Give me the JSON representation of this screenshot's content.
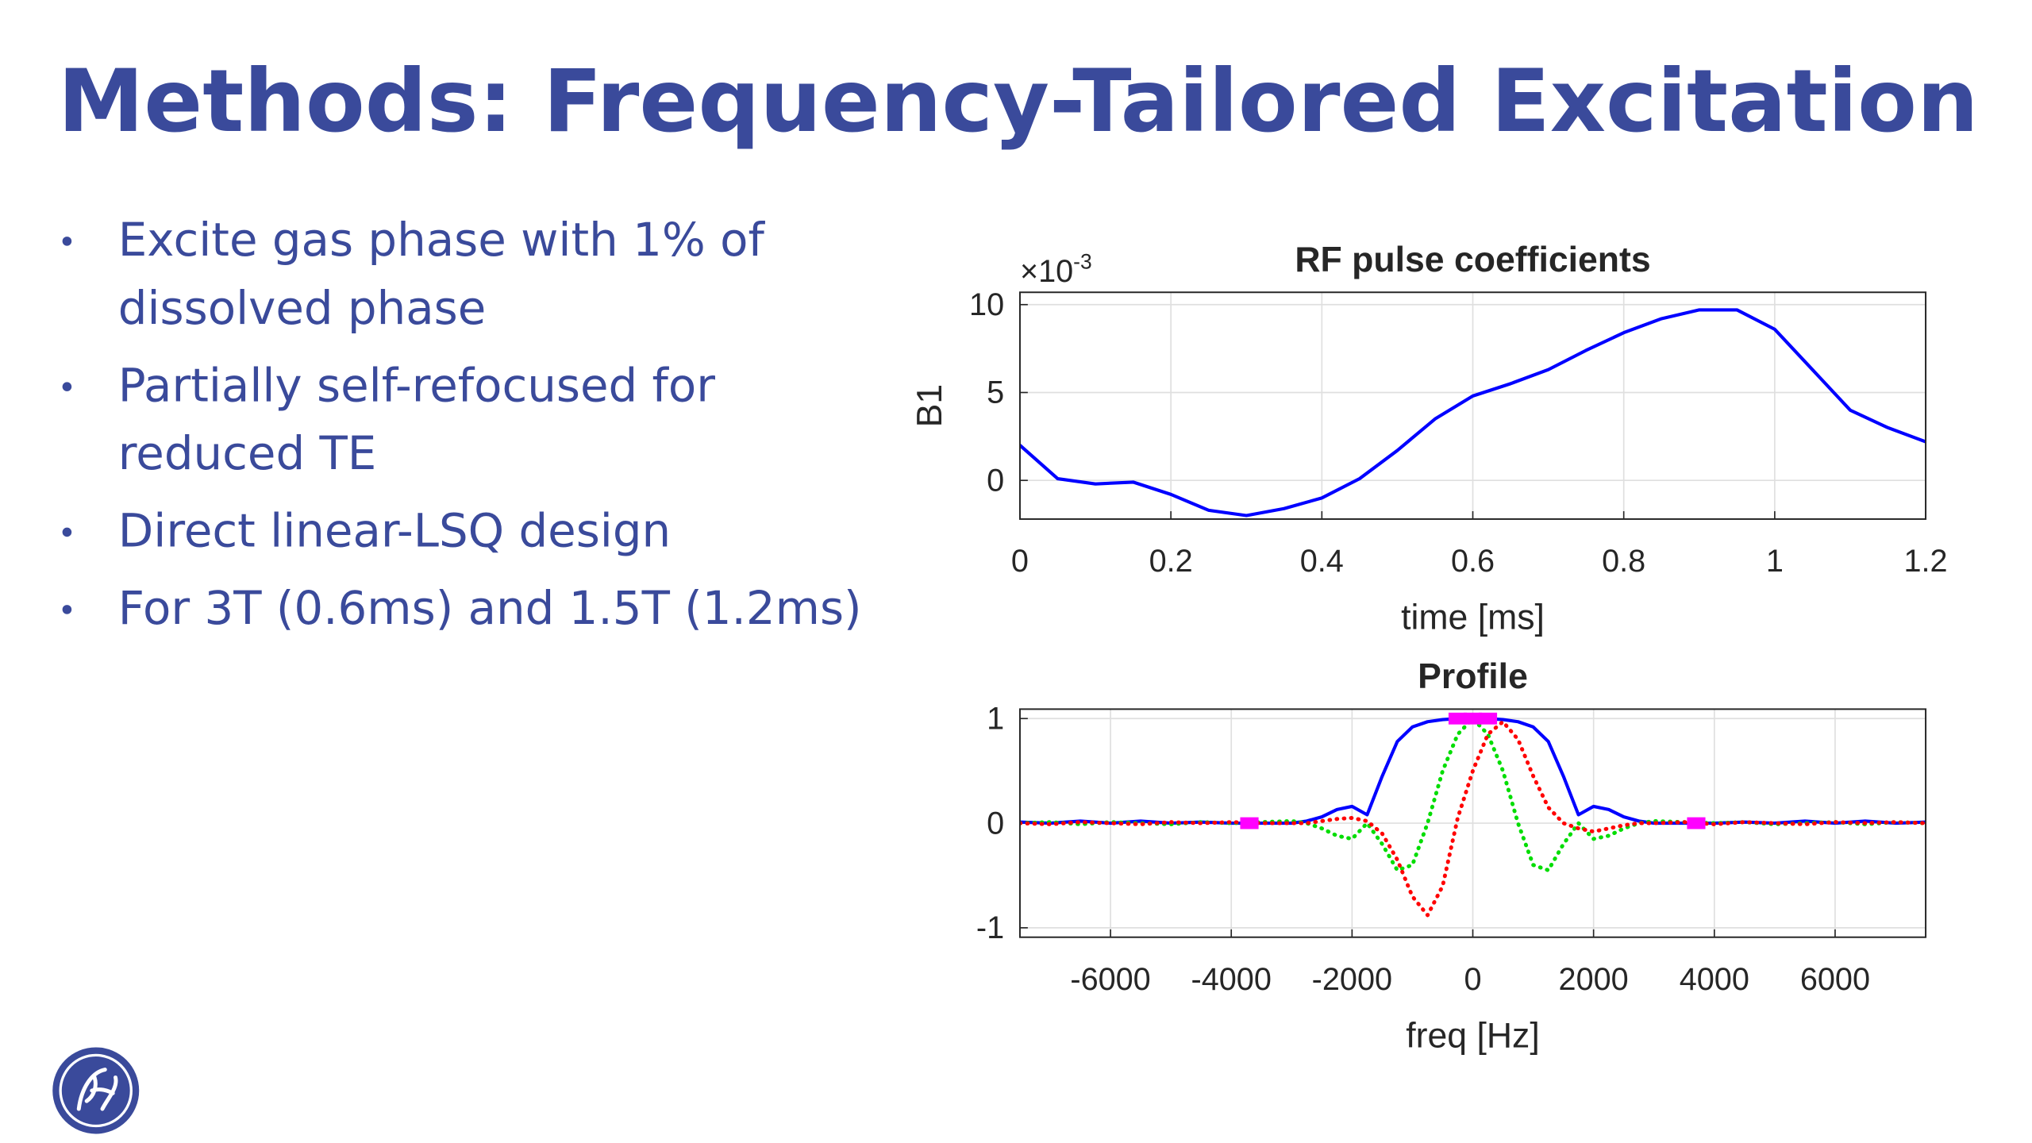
{
  "title": "Methods: Frequency-Tailored Excitation",
  "bullets": [
    [
      "Excite gas phase with 1% of",
      "dissolved phase"
    ],
    [
      "Partially self-refocused for",
      "reduced TE"
    ],
    [
      "Direct linear-LSQ design"
    ],
    [
      "For 3T (0.6ms) and 1.5T (1.2ms)"
    ]
  ],
  "chart_data": [
    {
      "type": "line",
      "title": "RF pulse coefficients",
      "x_label": "time [ms]",
      "y_label": "B1",
      "y_multiplier": {
        "base": "×10",
        "exponent": "-3"
      },
      "xlim": [
        0,
        1.2
      ],
      "xticks": [
        0,
        0.2,
        0.4,
        0.6,
        0.8,
        1,
        1.2
      ],
      "ylim": [
        -2.2,
        10.7
      ],
      "yticks": [
        0,
        5,
        10
      ],
      "grid": true,
      "x": [
        0,
        0.05,
        0.1,
        0.15,
        0.2,
        0.25,
        0.3,
        0.35,
        0.4,
        0.45,
        0.5,
        0.55,
        0.6,
        0.65,
        0.7,
        0.75,
        0.8,
        0.85,
        0.9,
        0.95,
        1.0,
        1.05,
        1.1,
        1.15,
        1.2
      ],
      "series": [
        {
          "color": "#0000ff",
          "linestyle": "solid",
          "values": [
            2.0,
            0.1,
            -0.2,
            -0.1,
            -0.8,
            -1.7,
            -2.0,
            -1.6,
            -1.0,
            0.1,
            1.7,
            3.5,
            4.8,
            5.5,
            6.3,
            7.4,
            8.4,
            9.2,
            9.7,
            9.7,
            8.6,
            6.3,
            4.0,
            3.0,
            2.2
          ]
        }
      ]
    },
    {
      "type": "line",
      "title": "Profile",
      "x_label": "freq [Hz]",
      "xlim": [
        -7500,
        7500
      ],
      "xticks": [
        -6000,
        -4000,
        -2000,
        0,
        2000,
        4000,
        6000
      ],
      "ylim": [
        -1.09,
        1.09
      ],
      "yticks": [
        -1,
        0,
        1
      ],
      "grid": true,
      "x": [
        -7500,
        -7000,
        -6500,
        -6000,
        -5500,
        -5000,
        -4500,
        -4000,
        -3500,
        -3000,
        -2750,
        -2500,
        -2250,
        -2000,
        -1750,
        -1500,
        -1250,
        -1000,
        -750,
        -500,
        -250,
        0,
        250,
        500,
        750,
        1000,
        1250,
        1500,
        1750,
        2000,
        2250,
        2500,
        2750,
        3000,
        3500,
        4000,
        4500,
        5000,
        5500,
        6000,
        6500,
        7000,
        7500
      ],
      "series": [
        {
          "color": "#0000ff",
          "linestyle": "solid",
          "values": [
            0.01,
            0.0,
            0.02,
            0.0,
            0.02,
            0.0,
            0.01,
            0.0,
            0.0,
            0.0,
            0.02,
            0.06,
            0.13,
            0.16,
            0.08,
            0.45,
            0.78,
            0.92,
            0.97,
            0.99,
            1.0,
            1.0,
            1.0,
            0.99,
            0.97,
            0.92,
            0.78,
            0.45,
            0.08,
            0.16,
            0.13,
            0.06,
            0.02,
            0.0,
            0.0,
            0.0,
            0.01,
            0.0,
            0.02,
            0.0,
            0.02,
            0.0,
            0.01
          ]
        },
        {
          "color": "#00dd00",
          "linestyle": "dotted",
          "values": [
            0.0,
            0.01,
            -0.01,
            0.01,
            0.0,
            -0.01,
            0.01,
            0.0,
            0.01,
            0.02,
            0.0,
            -0.05,
            -0.12,
            -0.15,
            0.0,
            -0.2,
            -0.45,
            -0.4,
            0.0,
            0.5,
            0.85,
            1.0,
            0.85,
            0.5,
            0.0,
            -0.4,
            -0.45,
            -0.2,
            0.0,
            -0.15,
            -0.12,
            -0.05,
            0.0,
            0.02,
            0.01,
            0.0,
            0.01,
            -0.01,
            0.0,
            0.01,
            -0.01,
            0.01,
            0.0
          ]
        },
        {
          "color": "#ff0000",
          "linestyle": "dotted",
          "values": [
            0.0,
            -0.01,
            0.01,
            0.0,
            -0.01,
            0.01,
            0.0,
            0.01,
            0.0,
            0.0,
            0.0,
            0.02,
            0.04,
            0.05,
            0.02,
            -0.1,
            -0.35,
            -0.7,
            -0.88,
            -0.6,
            0.05,
            0.5,
            0.85,
            0.97,
            0.8,
            0.45,
            0.15,
            0.0,
            -0.05,
            -0.08,
            -0.05,
            -0.02,
            0.0,
            0.0,
            0.01,
            -0.01,
            0.01,
            0.0,
            -0.01,
            0.01,
            0.0,
            0.01,
            0.0
          ]
        },
        {
          "color": "#ff00ff",
          "linestyle": "none",
          "marker": "square",
          "x": [
            -3700,
            -250,
            0,
            250,
            3700
          ],
          "values": [
            0,
            1,
            1,
            1,
            0
          ]
        }
      ]
    }
  ]
}
